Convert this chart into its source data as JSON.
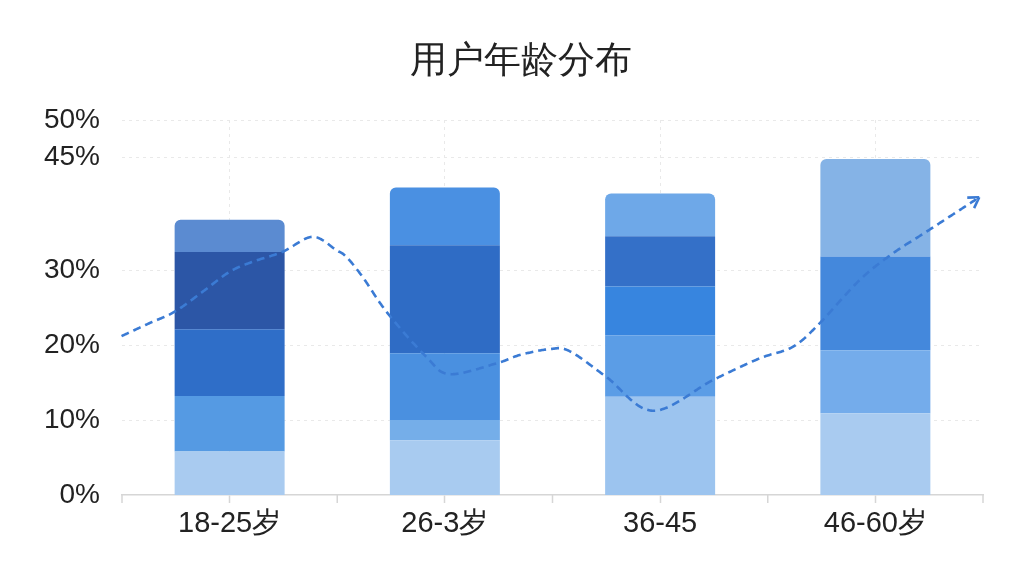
{
  "chart_data": {
    "type": "bar",
    "title": "用户年龄分布",
    "categories": [
      "18-25岁",
      "26-3岁",
      "36-45",
      "46-60岁"
    ],
    "stacked": true,
    "series": [
      {
        "colors": [
          "#a9cbf0",
          "#a8cbf0",
          "#9cc4ef",
          "#a9cbf0"
        ],
        "values": [
          5.8,
          7.3,
          13.1,
          10.9
        ]
      },
      {
        "colors": [
          "#559ae3",
          "#75aee9",
          "#5b9de6",
          "#74aceb"
        ],
        "values": [
          7.4,
          2.7,
          8.2,
          8.4
        ]
      },
      {
        "colors": [
          "#2f6ec8",
          "#4a90e0",
          "#3785df",
          "#4488dc"
        ],
        "values": [
          8.9,
          8.9,
          6.5,
          12.5
        ]
      },
      {
        "colors": [
          "#2c56a6",
          "#2f6cc5",
          "#3470c8",
          "#85b3e6"
        ],
        "values": [
          10.3,
          14.4,
          6.7,
          13.0
        ]
      },
      {
        "colors": [
          "#5b8bd1",
          "#4a90e2",
          "#6ea8e8",
          null
        ],
        "values": [
          4.3,
          7.7,
          5.7,
          null
        ]
      }
    ],
    "ylim": [
      0,
      50
    ],
    "yticks": [
      {
        "value": 0,
        "label": "0%"
      },
      {
        "value": 10,
        "label": "10%"
      },
      {
        "value": 20,
        "label": "20%"
      },
      {
        "value": 30,
        "label": "30%"
      },
      {
        "value": 45,
        "label": "45%"
      },
      {
        "value": 50,
        "label": "50%"
      }
    ],
    "grid": true,
    "legend": false
  }
}
